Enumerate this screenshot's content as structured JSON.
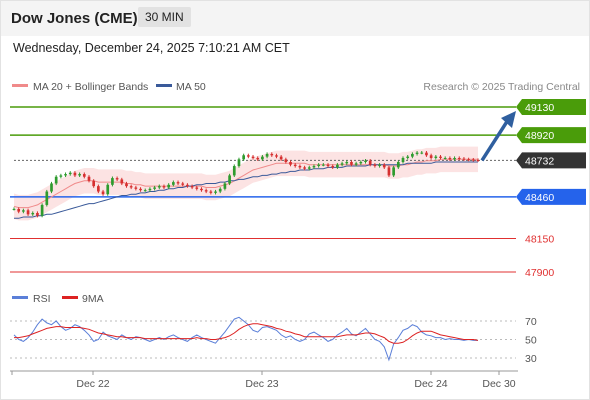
{
  "header": {
    "instrument": "Dow Jones (CME)",
    "timeframe": "30 MIN",
    "datetime": "Wednesday, December 24, 2025 7:10:21 AM CET"
  },
  "legend": {
    "ma20_label": "MA 20 + Bollinger Bands",
    "ma50_label": "MA 50",
    "credit": "Research © 2025 Trading Central",
    "rsi_label": "RSI",
    "rsi_ma_label": "9MA"
  },
  "colors": {
    "resistance": "#4a9c0a",
    "current": "#333333",
    "pivot": "#2563eb",
    "support": "#e03030",
    "candle_up": "#2e9b2e",
    "candle_down": "#d63030",
    "ma20": "#f08a8a",
    "ma50": "#3a5a9a",
    "bollinger": "#fbd9d9",
    "arrow": "#2f5f9f",
    "rsi": "#5b7fd8",
    "rsi_ma": "#dd2222"
  },
  "chart_data": {
    "type": "candlestick",
    "price_levels": [
      {
        "value": 49130,
        "label": "49130",
        "kind": "resistance"
      },
      {
        "value": 48920,
        "label": "48920",
        "kind": "resistance"
      },
      {
        "value": 48732,
        "label": "48732",
        "kind": "current"
      },
      {
        "value": 48460,
        "label": "48460",
        "kind": "pivot"
      },
      {
        "value": 48150,
        "label": "48150",
        "kind": "support"
      },
      {
        "value": 47900,
        "label": "47900",
        "kind": "support"
      }
    ],
    "ylim": [
      47850,
      49250
    ],
    "x_ticks": [
      "Dec 22",
      "Dec 23",
      "Dec 24",
      "Dec 30"
    ],
    "close": [
      48370,
      48350,
      48360,
      48330,
      48340,
      48320,
      48400,
      48500,
      48560,
      48610,
      48620,
      48630,
      48640,
      48620,
      48630,
      48610,
      48580,
      48540,
      48500,
      48480,
      48550,
      48600,
      48590,
      48560,
      48540,
      48530,
      48520,
      48510,
      48510,
      48520,
      48530,
      48540,
      48530,
      48550,
      48570,
      48560,
      48550,
      48540,
      48530,
      48520,
      48510,
      48500,
      48490,
      48500,
      48520,
      48560,
      48620,
      48690,
      48740,
      48770,
      48760,
      48750,
      48740,
      48760,
      48780,
      48770,
      48760,
      48740,
      48720,
      48700,
      48690,
      48680,
      48670,
      48680,
      48690,
      48700,
      48700,
      48690,
      48680,
      48700,
      48710,
      48720,
      48700,
      48710,
      48720,
      48730,
      48700,
      48690,
      48700,
      48680,
      48620,
      48680,
      48720,
      48750,
      48760,
      48780,
      48790,
      48790,
      48770,
      48750,
      48760,
      48750,
      48750,
      48740,
      48750,
      48745,
      48740,
      48738,
      48735,
      48732
    ],
    "ma20": [
      48390,
      48380,
      48380,
      48380,
      48390,
      48400,
      48420,
      48440,
      48460,
      48480,
      48500,
      48520,
      48540,
      48560,
      48570,
      48580,
      48580,
      48580,
      48570,
      48570,
      48570,
      48570,
      48570,
      48570,
      48560,
      48560,
      48550,
      48550,
      48540,
      48540,
      48540,
      48540,
      48540,
      48540,
      48540,
      48540,
      48540,
      48540,
      48540,
      48540,
      48540,
      48530,
      48530,
      48530,
      48540,
      48550,
      48560,
      48580,
      48600,
      48620,
      48640,
      48660,
      48670,
      48680,
      48690,
      48700,
      48710,
      48710,
      48710,
      48710,
      48710,
      48710,
      48710,
      48700,
      48700,
      48700,
      48700,
      48700,
      48700,
      48700,
      48700,
      48700,
      48700,
      48700,
      48700,
      48700,
      48700,
      48700,
      48700,
      48700,
      48690,
      48690,
      48690,
      48700,
      48700,
      48710,
      48720,
      48720,
      48730,
      48730,
      48730,
      48740,
      48740,
      48740,
      48740,
      48740,
      48740,
      48740,
      48740,
      48740
    ],
    "ma50": [
      48300,
      48300,
      48310,
      48310,
      48310,
      48320,
      48320,
      48330,
      48330,
      48340,
      48350,
      48360,
      48370,
      48380,
      48390,
      48400,
      48410,
      48410,
      48420,
      48430,
      48440,
      48450,
      48460,
      48470,
      48470,
      48480,
      48480,
      48490,
      48490,
      48500,
      48500,
      48510,
      48510,
      48520,
      48520,
      48530,
      48530,
      48540,
      48540,
      48550,
      48550,
      48560,
      48560,
      48560,
      48570,
      48570,
      48580,
      48580,
      48590,
      48590,
      48600,
      48610,
      48610,
      48620,
      48620,
      48630,
      48630,
      48640,
      48640,
      48650,
      48650,
      48660,
      48660,
      48660,
      48670,
      48670,
      48670,
      48680,
      48680,
      48680,
      48680,
      48690,
      48690,
      48690,
      48690,
      48690,
      48700,
      48700,
      48700,
      48700,
      48700,
      48700,
      48700,
      48700,
      48710,
      48710,
      48710,
      48710,
      48710,
      48710,
      48720,
      48720,
      48720,
      48720,
      48720,
      48720,
      48720,
      48720,
      48720,
      48720
    ],
    "bb_width": 95,
    "forecast_target": 49130,
    "rsi": {
      "ylim": [
        20,
        80
      ],
      "ticks": [
        70,
        50,
        30
      ],
      "values": [
        55,
        50,
        48,
        52,
        58,
        66,
        72,
        68,
        66,
        70,
        64,
        60,
        62,
        66,
        64,
        60,
        55,
        48,
        50,
        58,
        54,
        52,
        50,
        55,
        52,
        50,
        53,
        52,
        50,
        48,
        50,
        52,
        50,
        53,
        55,
        52,
        50,
        48,
        52,
        55,
        52,
        50,
        48,
        46,
        52,
        58,
        65,
        72,
        74,
        70,
        66,
        60,
        58,
        63,
        64,
        62,
        60,
        55,
        52,
        54,
        50,
        48,
        50,
        56,
        58,
        55,
        52,
        48,
        50,
        55,
        58,
        62,
        56,
        54,
        58,
        62,
        56,
        50,
        48,
        42,
        28,
        45,
        52,
        60,
        62,
        66,
        64,
        58,
        55,
        54,
        52,
        52,
        50,
        51,
        50,
        50,
        49,
        50,
        49,
        49
      ],
      "ma9": [
        52,
        52,
        53,
        54,
        56,
        58,
        60,
        62,
        63,
        64,
        64,
        63,
        63,
        63,
        63,
        62,
        61,
        59,
        57,
        56,
        55,
        54,
        53,
        53,
        52,
        52,
        52,
        52,
        51,
        51,
        51,
        51,
        51,
        51,
        51,
        51,
        51,
        51,
        51,
        52,
        51,
        51,
        50,
        50,
        51,
        52,
        54,
        57,
        61,
        64,
        66,
        67,
        67,
        66,
        65,
        64,
        62,
        61,
        59,
        58,
        56,
        55,
        53,
        53,
        53,
        53,
        53,
        53,
        53,
        53,
        54,
        55,
        55,
        55,
        56,
        57,
        57,
        56,
        54,
        52,
        48,
        46,
        46,
        47,
        50,
        54,
        57,
        59,
        59,
        59,
        57,
        55,
        54,
        53,
        52,
        51,
        50,
        50,
        50,
        49
      ]
    }
  }
}
